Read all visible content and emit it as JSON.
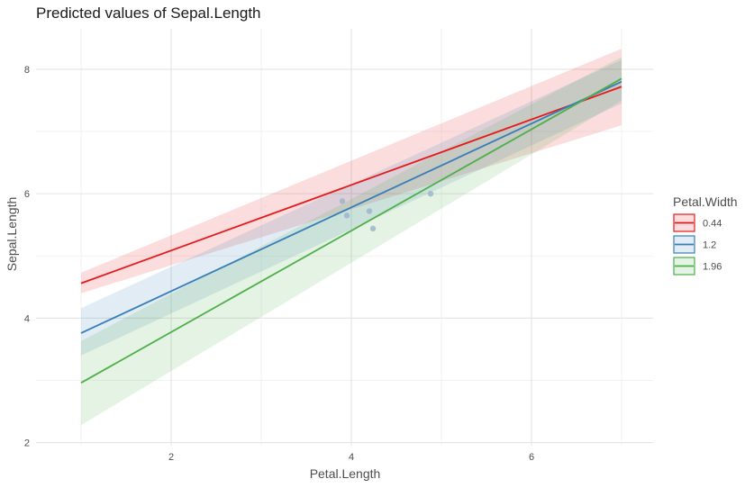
{
  "chart_data": {
    "type": "line",
    "title": "Predicted values of Sepal.Length",
    "xlabel": "Petal.Length",
    "ylabel": "Sepal.Length",
    "xlim": [
      0.5,
      7.35
    ],
    "ylim": [
      1.95,
      8.65
    ],
    "xticks": [
      2,
      4,
      6
    ],
    "yticks": [
      2,
      4,
      6,
      8
    ],
    "x": [
      1,
      7
    ],
    "grid": true,
    "legend": {
      "title": "Petal.Width",
      "position": "right"
    },
    "series": [
      {
        "name": "0.44",
        "color": "#E41A1C",
        "fit": [
          4.56,
          7.72
        ],
        "lower": [
          4.4,
          7.1
        ],
        "upper": [
          4.73,
          8.33
        ]
      },
      {
        "name": "1.2",
        "color": "#377EB8",
        "fit": [
          3.76,
          7.8
        ],
        "lower": [
          3.4,
          7.45
        ],
        "upper": [
          4.16,
          8.15
        ]
      },
      {
        "name": "1.96",
        "color": "#4DAF4A",
        "fit": [
          2.96,
          7.85
        ],
        "lower": [
          2.28,
          7.5
        ],
        "upper": [
          3.63,
          8.2
        ]
      }
    ],
    "points": [
      {
        "x": 3.9,
        "y": 5.88
      },
      {
        "x": 3.95,
        "y": 5.65
      },
      {
        "x": 4.2,
        "y": 5.72
      },
      {
        "x": 4.24,
        "y": 5.44
      },
      {
        "x": 4.88,
        "y": 6.0
      }
    ],
    "point_color": "#9FB5CC"
  }
}
